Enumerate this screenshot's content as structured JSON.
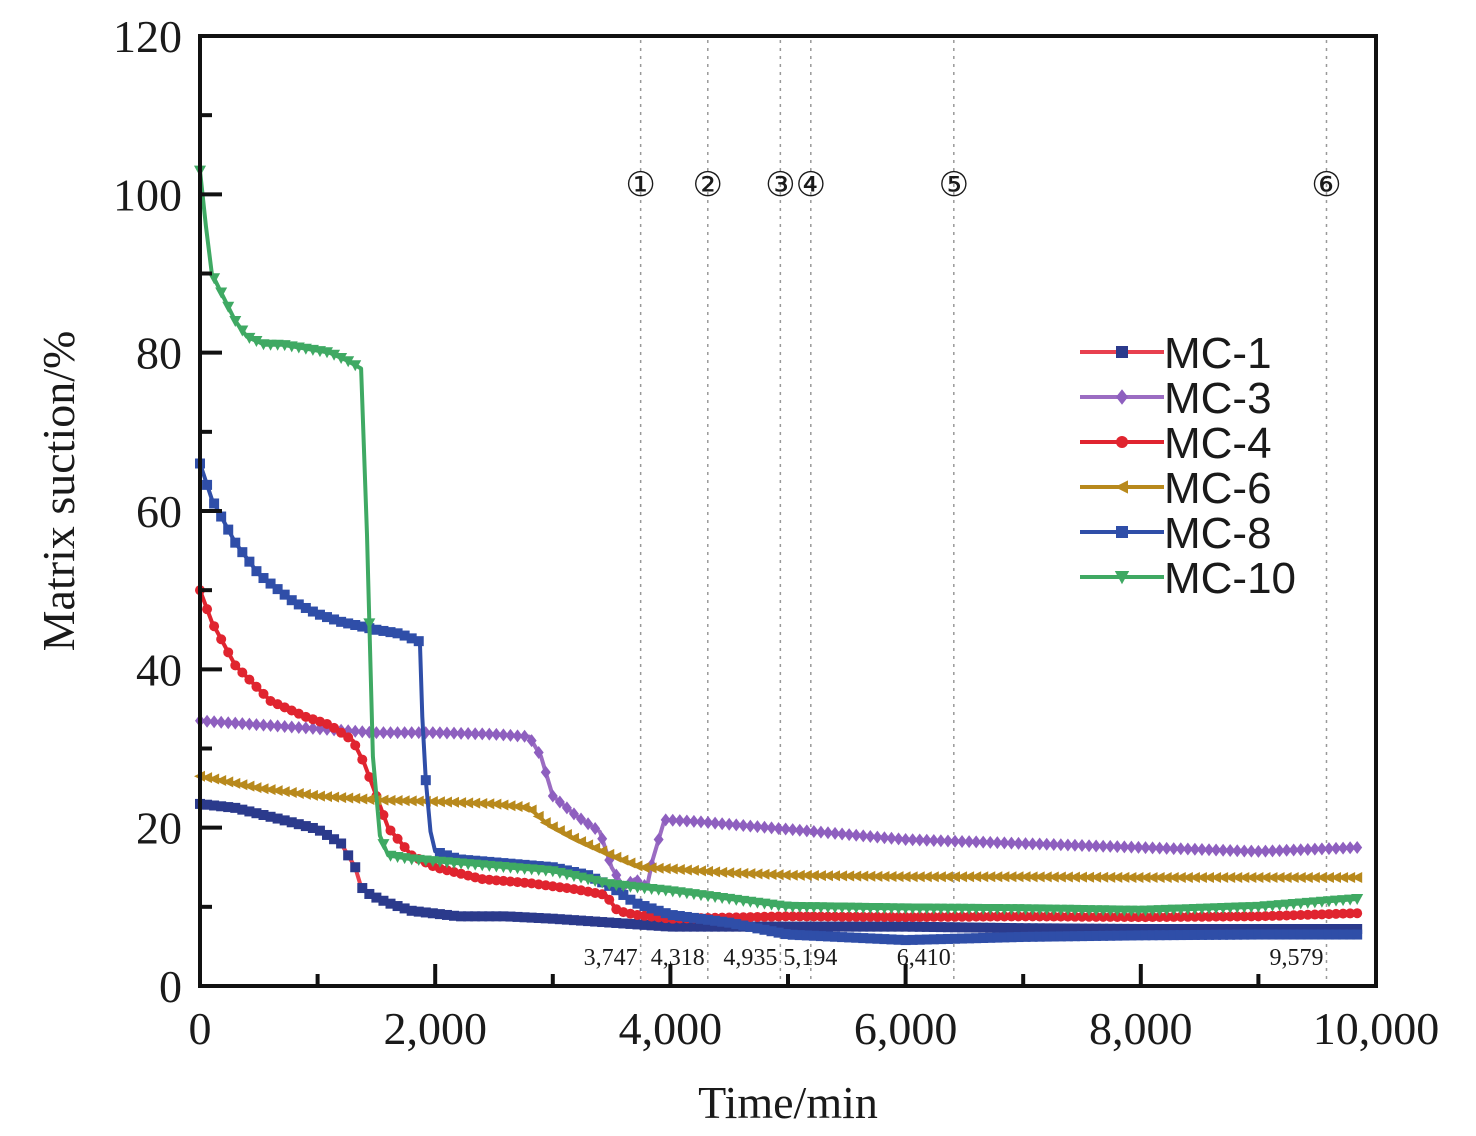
{
  "chart_data": {
    "type": "line",
    "title": "",
    "xlabel": "Time/min",
    "ylabel": "Matrix suction/%",
    "xlim": [
      0,
      10000
    ],
    "ylim": [
      0,
      120
    ],
    "x_ticks": [
      0,
      2000,
      4000,
      6000,
      8000,
      10000
    ],
    "x_tick_labels": [
      "0",
      "2,000",
      "4,000",
      "6,000",
      "8,000",
      "10,000"
    ],
    "y_ticks": [
      0,
      20,
      40,
      60,
      80,
      100,
      120
    ],
    "y_tick_labels": [
      "0",
      "20",
      "40",
      "60",
      "80",
      "100",
      "120"
    ],
    "grid": false,
    "legend_position": "right",
    "event_lines": [
      {
        "stage": "①",
        "time": 3747,
        "label": "3,747"
      },
      {
        "stage": "②",
        "time": 4318,
        "label": "4,318"
      },
      {
        "stage": "③",
        "time": 4935,
        "label": "4,935"
      },
      {
        "stage": "④",
        "time": 5194,
        "label": "5,194"
      },
      {
        "stage": "⑤",
        "time": 6410,
        "label": "6,410"
      },
      {
        "stage": "⑥",
        "time": 9579,
        "label": "9,579"
      }
    ],
    "series": [
      {
        "name": "MC-1",
        "color": "#e8404f",
        "marker_color": "#2b3a8c",
        "marker": "square",
        "x": [
          0,
          300,
          700,
          1000,
          1200,
          1320,
          1370,
          1450,
          1600,
          1800,
          2200,
          2600,
          3000,
          3500,
          4000,
          5000,
          6000,
          7000,
          8000,
          9000,
          9850
        ],
        "y": [
          23,
          22.5,
          21,
          19.8,
          18,
          15,
          12.5,
          11.5,
          10.5,
          9.5,
          8.8,
          8.8,
          8.5,
          8,
          7.5,
          7.5,
          7.5,
          7.3,
          7.2,
          7.2,
          7.2
        ]
      },
      {
        "name": "MC-3",
        "color": "#9b6cc2",
        "marker_color": "#8e5fbf",
        "marker": "diamond",
        "x": [
          0,
          500,
          1000,
          1500,
          2000,
          2500,
          2800,
          2900,
          2950,
          3000,
          3200,
          3400,
          3500,
          3600,
          3700,
          3800,
          3850,
          3950,
          4200,
          5000,
          6000,
          7000,
          8000,
          9000,
          9850
        ],
        "y": [
          33.5,
          33,
          32.5,
          32,
          32,
          31.8,
          31.5,
          29,
          26.5,
          24,
          21.5,
          19.5,
          15,
          12.5,
          13.5,
          12.5,
          16,
          21,
          20.8,
          19.8,
          18.5,
          18,
          17.5,
          17,
          17.5
        ]
      },
      {
        "name": "MC-4",
        "color": "#e0242f",
        "marker_color": "#e0242f",
        "marker": "circle",
        "x": [
          0,
          100,
          300,
          600,
          900,
          1100,
          1300,
          1400,
          1500,
          1600,
          1800,
          2000,
          2400,
          2800,
          3200,
          3450,
          3550,
          3700,
          4000,
          5000,
          6000,
          7000,
          8000,
          9000,
          9850
        ],
        "y": [
          50,
          46,
          40.5,
          36,
          34,
          33,
          31,
          28,
          24,
          20,
          16.5,
          15,
          13.5,
          13,
          12.2,
          11.5,
          9.5,
          9,
          8.5,
          8.8,
          8.7,
          8.8,
          8.7,
          8.8,
          9.2
        ]
      },
      {
        "name": "MC-6",
        "color": "#b8891c",
        "marker_color": "#b8891c",
        "marker": "left-triangle",
        "x": [
          0,
          500,
          1000,
          1500,
          2000,
          2500,
          2800,
          2950,
          3200,
          3500,
          3750,
          4000,
          4500,
          5000,
          6000,
          7000,
          8000,
          9000,
          9850
        ],
        "y": [
          26.5,
          25,
          24,
          23.5,
          23.3,
          23,
          22.5,
          20.5,
          18.5,
          16.5,
          15,
          14.8,
          14.3,
          14,
          13.8,
          13.8,
          13.7,
          13.7,
          13.7
        ]
      },
      {
        "name": "MC-8",
        "color": "#2f4ea8",
        "marker_color": "#2f4ea8",
        "marker": "square",
        "x": [
          0,
          100,
          300,
          500,
          800,
          1000,
          1200,
          1500,
          1700,
          1870,
          1890,
          1920,
          1960,
          2000,
          2200,
          2600,
          3000,
          3300,
          3500,
          3700,
          4000,
          4500,
          5000,
          6000,
          7000,
          8000,
          9000,
          9850
        ],
        "y": [
          66,
          61.5,
          56,
          52,
          48.5,
          47,
          46,
          45,
          44.5,
          43.5,
          34,
          26,
          19.5,
          17,
          16,
          15.5,
          15,
          14,
          12.5,
          10.5,
          9,
          8,
          6.5,
          5.8,
          6.2,
          6.4,
          6.5,
          6.5
        ]
      },
      {
        "name": "MC-10",
        "color": "#3fa963",
        "marker_color": "#3fa963",
        "marker": "down-triangle",
        "x": [
          0,
          50,
          100,
          200,
          300,
          400,
          550,
          700,
          900,
          1100,
          1250,
          1370,
          1420,
          1470,
          1530,
          1600,
          1800,
          2200,
          2600,
          3000,
          3500,
          4000,
          4500,
          5000,
          6000,
          7000,
          8000,
          9000,
          9850
        ],
        "y": [
          103,
          96,
          90,
          87,
          84,
          82,
          81,
          81,
          80.5,
          80,
          79,
          78,
          57,
          29,
          19,
          16.5,
          16,
          15.5,
          15,
          14.5,
          12.8,
          12,
          11,
          10,
          9.8,
          9.7,
          9.5,
          10,
          11
        ]
      }
    ]
  }
}
